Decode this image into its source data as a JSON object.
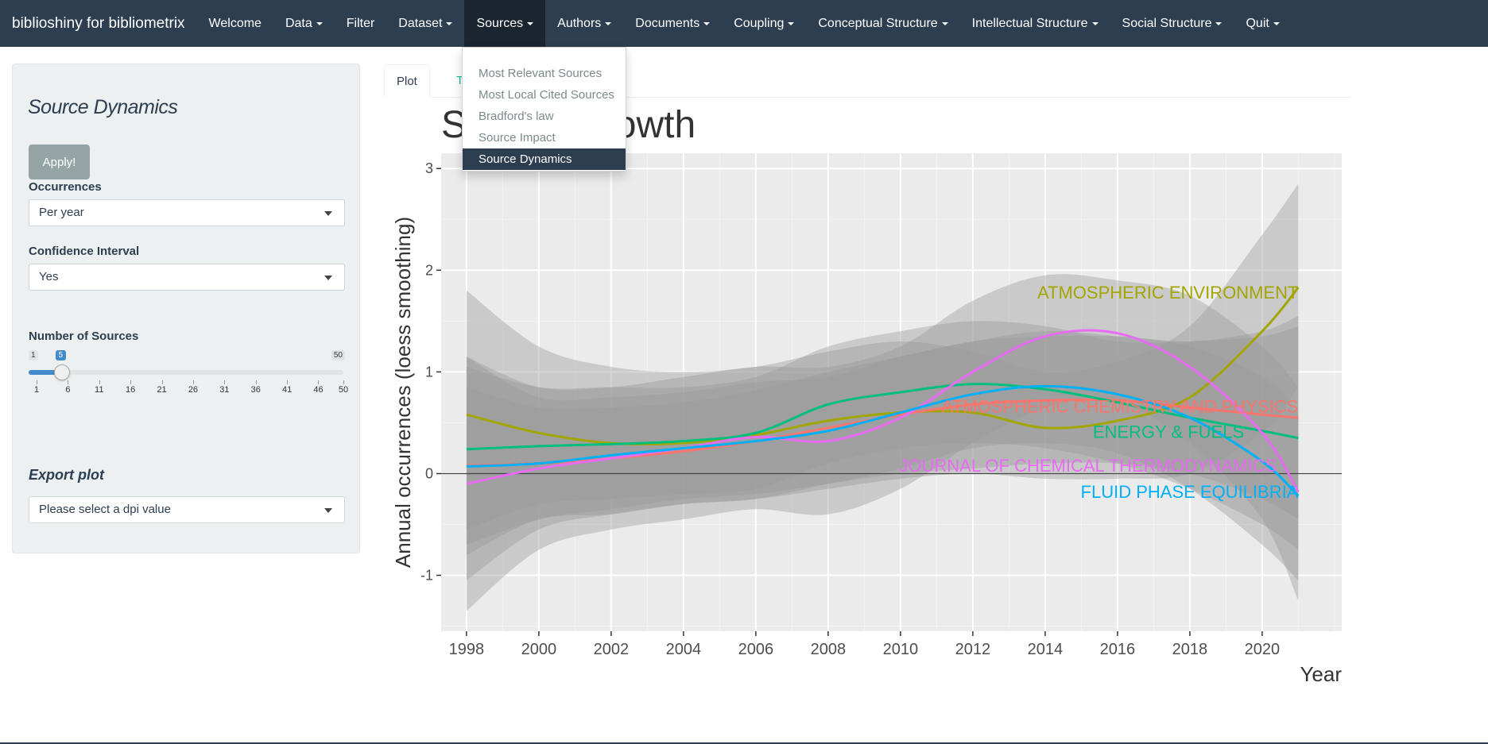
{
  "navbar": {
    "brand": "biblioshiny for bibliometrix",
    "items": [
      {
        "label": "Welcome",
        "caret": false
      },
      {
        "label": "Data",
        "caret": true
      },
      {
        "label": "Filter",
        "caret": false
      },
      {
        "label": "Dataset",
        "caret": true
      },
      {
        "label": "Sources",
        "caret": true
      },
      {
        "label": "Authors",
        "caret": true
      },
      {
        "label": "Documents",
        "caret": true
      },
      {
        "label": "Coupling",
        "caret": true
      },
      {
        "label": "Conceptual Structure",
        "caret": true
      },
      {
        "label": "Intellectual Structure",
        "caret": true
      },
      {
        "label": "Social Structure",
        "caret": true
      },
      {
        "label": "Quit",
        "caret": true
      }
    ],
    "active": "Sources",
    "bg_color": "#2c3e50"
  },
  "sources_menu": {
    "items": [
      "Most Relevant Sources",
      "Most Local Cited Sources",
      "Bradford's law",
      "Source Impact",
      "Source Dynamics"
    ],
    "selected": "Source Dynamics"
  },
  "sidebar": {
    "title": "Source Dynamics",
    "apply_label": "Apply!",
    "occurrences_label": "Occurrences",
    "occurrences_value": "Per year",
    "ci_label": "Confidence Interval",
    "ci_value": "Yes",
    "sources_label": "Number of Sources",
    "slider": {
      "min": 1,
      "max": 50,
      "value": 5,
      "min_label": "1",
      "max_label": "50",
      "value_label": "5",
      "ticks": [
        "1",
        "6",
        "11",
        "16",
        "21",
        "26",
        "31",
        "36",
        "41",
        "46",
        "50"
      ]
    },
    "export_label": "Export plot",
    "dpi_placeholder": "Please select a dpi value"
  },
  "tabs": {
    "plot": "Plot",
    "table": "Table"
  },
  "chart_data": {
    "type": "line",
    "title": "Source Growth",
    "xlabel": "Year",
    "ylabel": "Annual occurrences (loess smoothing)",
    "xlim": [
      1997.3,
      2022.2
    ],
    "ylim": [
      -1.55,
      3.15
    ],
    "xticks": [
      1998,
      2000,
      2002,
      2004,
      2006,
      2008,
      2010,
      2012,
      2014,
      2016,
      2018,
      2020
    ],
    "yticks": [
      -1,
      0,
      1,
      2,
      3
    ],
    "grid": true,
    "legend": "direct labels",
    "x": [
      1998,
      2000,
      2002,
      2004,
      2006,
      2008,
      2010,
      2012,
      2014,
      2016,
      2018,
      2020,
      2021
    ],
    "series": [
      {
        "name": "ATMOSPHERIC ENVIRONMENT",
        "color": "#a3a500",
        "values": [
          0.58,
          0.4,
          0.3,
          0.3,
          0.38,
          0.52,
          0.6,
          0.6,
          0.45,
          0.52,
          0.75,
          1.4,
          1.83
        ],
        "lower": [
          -0.8,
          -0.45,
          -0.4,
          -0.3,
          -0.25,
          -0.15,
          -0.05,
          0.0,
          -0.05,
          -0.05,
          0.0,
          0.4,
          0.85
        ],
        "upper": [
          1.8,
          1.25,
          1.05,
          1.0,
          1.05,
          1.2,
          1.3,
          1.2,
          1.0,
          1.1,
          1.45,
          2.35,
          2.85
        ],
        "label": "ATMOSPHERIC ENVIRONMENT",
        "label_x": 2021,
        "label_y": 1.72
      },
      {
        "name": "ATMOSPHERIC CHEMISTRY AND PHYSICS",
        "color": "#f8766d",
        "values": [
          0.08,
          0.1,
          0.15,
          0.22,
          0.32,
          0.45,
          0.58,
          0.68,
          0.72,
          0.72,
          0.65,
          0.58,
          0.55
        ],
        "lower": [
          -0.7,
          -0.45,
          -0.35,
          -0.25,
          -0.2,
          -0.1,
          0.0,
          0.05,
          0.1,
          0.1,
          0.0,
          -0.25,
          -0.45
        ],
        "upper": [
          0.85,
          0.65,
          0.65,
          0.7,
          0.82,
          1.0,
          1.15,
          1.3,
          1.35,
          1.35,
          1.3,
          1.4,
          1.55
        ],
        "label": "ATMOSPHERIC CHEMISTRY AND PHYSICS",
        "label_x": 2021,
        "label_y": 0.6
      },
      {
        "name": "ENERGY & FUELS",
        "color": "#00bf7d",
        "values": [
          0.24,
          0.27,
          0.29,
          0.32,
          0.4,
          0.68,
          0.8,
          0.88,
          0.83,
          0.7,
          0.55,
          0.42,
          0.35
        ],
        "lower": [
          -0.55,
          -0.3,
          -0.25,
          -0.2,
          -0.15,
          0.1,
          0.25,
          0.3,
          0.25,
          0.1,
          -0.15,
          -0.5,
          -0.75
        ],
        "upper": [
          1.05,
          0.85,
          0.85,
          0.85,
          0.95,
          1.25,
          1.4,
          1.5,
          1.45,
          1.3,
          1.3,
          1.35,
          1.45
        ],
        "label": "ENERGY & FUELS",
        "label_x": 2019.5,
        "label_y": 0.35
      },
      {
        "name": "JOURNAL OF CHEMICAL THERMODYNAMICS",
        "color": "#e76bf3",
        "values": [
          -0.1,
          0.05,
          0.15,
          0.25,
          0.36,
          0.32,
          0.55,
          1.0,
          1.35,
          1.38,
          1.05,
          0.4,
          -0.18
        ],
        "lower": [
          -1.35,
          -0.75,
          -0.55,
          -0.45,
          -0.35,
          -0.4,
          -0.15,
          0.3,
          0.65,
          0.7,
          0.3,
          -0.45,
          -1.25
        ],
        "upper": [
          1.15,
          0.85,
          0.85,
          0.95,
          1.05,
          1.05,
          1.25,
          1.7,
          1.95,
          1.9,
          1.75,
          1.25,
          0.85
        ],
        "label": "JOURNAL OF CHEMICAL THERMODYNAMICS",
        "label_x": 2020.4,
        "label_y": 0.02
      },
      {
        "name": "FLUID PHASE EQUILIBRIA",
        "color": "#00b0f6",
        "values": [
          0.07,
          0.1,
          0.18,
          0.25,
          0.32,
          0.42,
          0.6,
          0.78,
          0.86,
          0.78,
          0.55,
          0.12,
          -0.22
        ],
        "lower": [
          -1.05,
          -0.55,
          -0.4,
          -0.3,
          -0.25,
          -0.1,
          0.05,
          0.25,
          0.3,
          0.2,
          -0.15,
          -0.7,
          -1.05
        ],
        "upper": [
          1.15,
          0.75,
          0.75,
          0.8,
          0.9,
          0.95,
          1.15,
          1.3,
          1.4,
          1.35,
          1.25,
          0.95,
          0.6
        ],
        "label": "FLUID PHASE EQUILIBRIA",
        "label_x": 2021,
        "label_y": -0.24
      }
    ]
  }
}
